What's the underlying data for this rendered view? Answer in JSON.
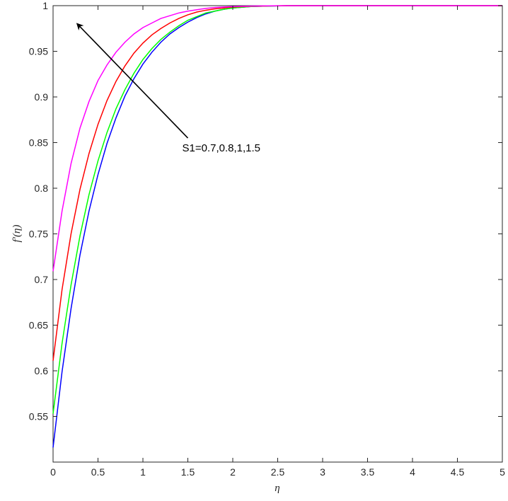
{
  "chart_data": {
    "type": "line",
    "title": "",
    "xlabel": "η",
    "ylabel": "f′(η)",
    "xlim": [
      0,
      5
    ],
    "ylim": [
      0.5,
      1.0
    ],
    "x_ticks": [
      "0",
      "0.5",
      "1",
      "1.5",
      "2",
      "2.5",
      "3",
      "3.5",
      "4",
      "4.5",
      "5"
    ],
    "y_ticks": [
      "0.55",
      "0.6",
      "0.65",
      "0.7",
      "0.75",
      "0.8",
      "0.85",
      "0.9",
      "0.95",
      "1"
    ],
    "grid": false,
    "annotation": {
      "text": "S1=0.7,0.8,1,1.5",
      "arrow_from": [
        1.5,
        0.855
      ],
      "arrow_to": [
        0.27,
        0.98
      ]
    },
    "x": [
      0,
      0.1,
      0.2,
      0.3,
      0.4,
      0.5,
      0.6,
      0.7,
      0.8,
      0.9,
      1.0,
      1.1,
      1.2,
      1.3,
      1.4,
      1.5,
      1.6,
      1.7,
      1.8,
      1.9,
      2.0,
      2.2,
      2.4,
      2.6,
      2.8,
      3.0,
      3.5,
      4.0,
      4.5,
      5.0
    ],
    "series": [
      {
        "color": "#0000ff",
        "values": [
          0.516,
          0.599,
          0.668,
          0.727,
          0.775,
          0.815,
          0.849,
          0.877,
          0.901,
          0.92,
          0.936,
          0.949,
          0.96,
          0.969,
          0.976,
          0.982,
          0.987,
          0.991,
          0.994,
          0.996,
          0.9975,
          0.999,
          0.9996,
          0.9999,
          1.0,
          1.0,
          1.0,
          1.0,
          1.0,
          1.0
        ]
      },
      {
        "color": "#00ff00",
        "values": [
          0.553,
          0.63,
          0.694,
          0.748,
          0.793,
          0.83,
          0.861,
          0.887,
          0.908,
          0.926,
          0.941,
          0.953,
          0.963,
          0.971,
          0.978,
          0.984,
          0.988,
          0.992,
          0.994,
          0.996,
          0.9975,
          0.999,
          0.9996,
          0.9999,
          1.0,
          1.0,
          1.0,
          1.0,
          1.0,
          1.0
        ]
      },
      {
        "color": "#ff0000",
        "values": [
          0.611,
          0.689,
          0.75,
          0.799,
          0.838,
          0.87,
          0.896,
          0.917,
          0.934,
          0.948,
          0.959,
          0.968,
          0.975,
          0.981,
          0.986,
          0.99,
          0.993,
          0.995,
          0.9965,
          0.9975,
          0.9985,
          0.9993,
          0.9997,
          1.0,
          1.0,
          1.0,
          1.0,
          1.0,
          1.0,
          1.0
        ]
      },
      {
        "color": "#ff00ff",
        "values": [
          0.709,
          0.775,
          0.827,
          0.866,
          0.895,
          0.918,
          0.935,
          0.949,
          0.96,
          0.969,
          0.976,
          0.981,
          0.986,
          0.989,
          0.992,
          0.994,
          0.9955,
          0.997,
          0.998,
          0.9985,
          0.999,
          0.9995,
          0.9998,
          1.0,
          1.0,
          1.0,
          1.0,
          1.0,
          1.0,
          1.0
        ]
      }
    ]
  }
}
